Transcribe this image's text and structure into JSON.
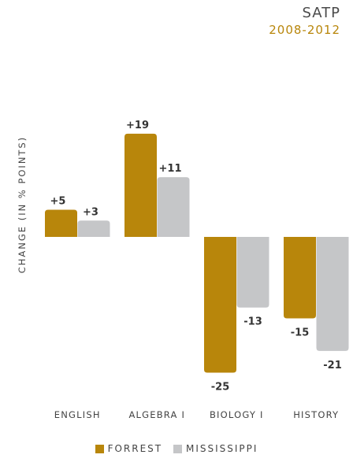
{
  "title": "SATP",
  "subtitle": "2008-2012",
  "chart_data": {
    "type": "bar",
    "categories": [
      "ENGLISH",
      "ALGEBRA I",
      "BIOLOGY I",
      "HISTORY"
    ],
    "series": [
      {
        "name": "FORREST",
        "values": [
          5,
          19,
          -25,
          -15
        ],
        "labels": [
          "+5",
          "+19",
          "-25",
          "-15"
        ],
        "color": "#b8860b"
      },
      {
        "name": "MISSISSIPPI",
        "values": [
          3,
          11,
          -13,
          -21
        ],
        "labels": [
          "+3",
          "+11",
          "-13",
          "-21"
        ],
        "color": "#c5c6c8"
      }
    ],
    "ylabel": "CHANGE (IN % POINTS)",
    "xlabel": "",
    "ylim": [
      -25,
      19
    ],
    "grid": false,
    "legend_position": "bottom-center"
  }
}
